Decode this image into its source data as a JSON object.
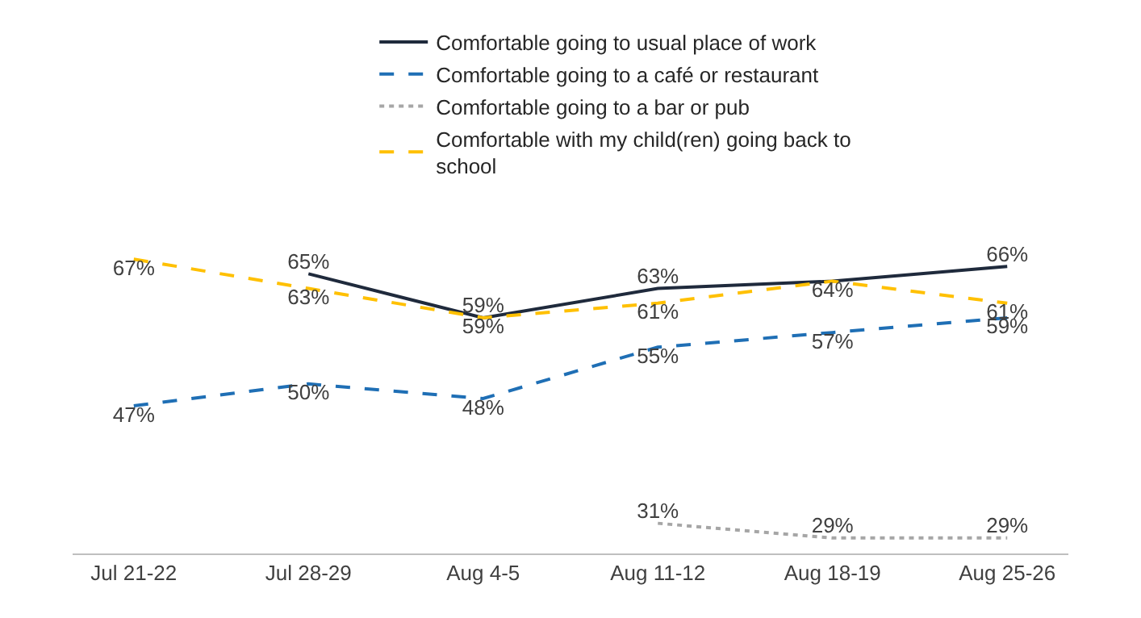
{
  "chart_data": {
    "type": "line",
    "categories": [
      "Jul 21-22",
      "Jul 28-29",
      "Aug 4-5",
      "Aug 11-12",
      "Aug 18-19",
      "Aug 25-26"
    ],
    "legend": "top",
    "grid": false,
    "marker": "none",
    "series": [
      {
        "name": "Comfortable going to usual place of work",
        "color": "#1f2a3c",
        "line_style": "solid",
        "values": [
          null,
          65,
          59,
          63,
          64,
          66
        ],
        "value_labels": [
          null,
          "65%",
          "59%",
          "63%",
          null,
          "66%"
        ]
      },
      {
        "name": "Comfortable going to a café or restaurant",
        "color": "#1f6fb5",
        "line_style": "dashed",
        "values": [
          47,
          50,
          48,
          55,
          57,
          59
        ],
        "value_labels": [
          "47%",
          "50%",
          "48%",
          "55%",
          "57%",
          "59%"
        ]
      },
      {
        "name": "Comfortable going to a bar or pub",
        "color": "#a6a6a6",
        "line_style": "dotted",
        "values": [
          null,
          null,
          null,
          31,
          29,
          29
        ],
        "value_labels": [
          null,
          null,
          null,
          "31%",
          "29%",
          "29%"
        ]
      },
      {
        "name": "Comfortable with my child(ren) going back to school",
        "color": "#ffc000",
        "line_style": "dashed",
        "values": [
          67,
          63,
          59,
          61,
          64,
          61
        ],
        "value_labels": [
          "67%",
          "63%",
          "59%",
          "61%",
          "64%",
          "61%"
        ]
      }
    ]
  }
}
